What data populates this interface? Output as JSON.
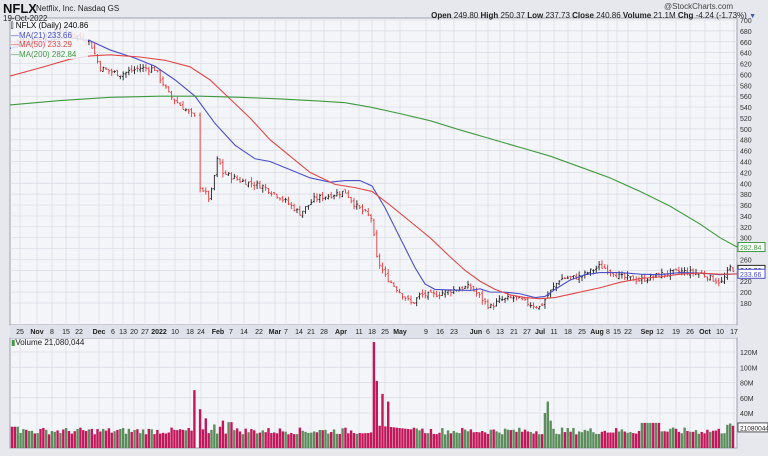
{
  "header": {
    "symbol": "NFLX",
    "company": "Netflix, Inc.",
    "exchange": "Nasdaq GS",
    "date": "19-Oct-2022",
    "brand": "@StockCharts.com",
    "open_label": "Open",
    "open": "249.80",
    "high_label": "High",
    "high": "250.37",
    "low_label": "Low",
    "low": "237.73",
    "close_label": "Close",
    "close": "240.86",
    "volume_label": "Volume",
    "volume": "21.1M",
    "chg_label": "Chg",
    "chg": "-4.24 (-1.73%)",
    "dropdown_icon": "triangle-down"
  },
  "legend": {
    "price": "NFLX (Daily) 240.86",
    "ma21": "MA(21) 233.66",
    "ma50": "MA(50) 233.29",
    "ma200": "MA(200) 282.84"
  },
  "volume_panel": {
    "label": "Volume 21,080,044",
    "last_tag": "21080044"
  },
  "colors": {
    "up_bar": "#222222",
    "down_bar": "#e03c3c",
    "ma21": "#4a4fc8",
    "ma50": "#e04848",
    "ma200": "#3f9a3f",
    "vol_up": "#5b8c5b",
    "vol_down": "#c2185b",
    "grid": "#d8dbe3",
    "plot_bg": "#f4f5f9"
  },
  "chart_data": {
    "type": "ohlc",
    "title": "NFLX Netflix, Inc. Nasdaq GS (Daily) 19-Oct-2022",
    "price_axis": {
      "min": 180,
      "max": 700,
      "ticks": [
        700,
        680,
        660,
        640,
        620,
        600,
        580,
        560,
        540,
        520,
        500,
        480,
        460,
        440,
        420,
        400,
        380,
        360,
        340,
        320,
        300,
        280,
        260,
        240,
        220,
        200,
        180
      ]
    },
    "volume_axis": {
      "ticks": [
        "120M",
        "100M",
        "80M",
        "60M",
        "40M"
      ]
    },
    "x_ticks": [
      "25",
      "Nov",
      "8",
      "15",
      "22",
      "Dec",
      "6",
      "13",
      "20",
      "27",
      "2022",
      "10",
      "18",
      "24",
      "Feb",
      "7",
      "14",
      "22",
      "Mar",
      "7",
      "14",
      "21",
      "28",
      "Apr",
      "11",
      "18",
      "25",
      "May",
      "9",
      "16",
      "23",
      "Jun",
      "6",
      "13",
      "21",
      "27",
      "Jul",
      "11",
      "18",
      "25",
      "Aug",
      "8",
      "15",
      "22",
      "Sep",
      "12",
      "19",
      "26",
      "Oct",
      "10",
      "17"
    ],
    "axis_tags": [
      {
        "label": "282.84",
        "value": 282.84,
        "series": "MA(200)"
      },
      {
        "label": "240.86",
        "value": 240.86,
        "series": "Close"
      },
      {
        "label": "233.66",
        "value": 233.66,
        "series": "MA(21)"
      }
    ],
    "close_series_approx": [
      {
        "period": "Oct-2021 end",
        "close": 665
      },
      {
        "period": "Nov-2021 mid",
        "close": 680
      },
      {
        "period": "Dec-2021 early",
        "close": 610
      },
      {
        "period": "Dec-2021 end",
        "close": 610
      },
      {
        "period": "Jan-2022 mid",
        "close": 525
      },
      {
        "period": "Jan-2022 late",
        "close": 385
      },
      {
        "period": "Feb-2022 early",
        "close": 450
      },
      {
        "period": "Feb-2022 late",
        "close": 390
      },
      {
        "period": "Mar-2022 mid",
        "close": 340
      },
      {
        "period": "Apr-2022 early",
        "close": 380
      },
      {
        "period": "Apr-2022 mid",
        "close": 340
      },
      {
        "period": "Apr-2022 late",
        "close": 220
      },
      {
        "period": "May-2022 mid",
        "close": 175
      },
      {
        "period": "May-2022 end",
        "close": 195
      },
      {
        "period": "Jun-2022 early",
        "close": 200
      },
      {
        "period": "Jun-2022 mid",
        "close": 175
      },
      {
        "period": "Jul-2022 mid",
        "close": 175
      },
      {
        "period": "Jul-2022 end",
        "close": 225
      },
      {
        "period": "Aug-2022 mid",
        "close": 250
      },
      {
        "period": "Aug-2022 end",
        "close": 225
      },
      {
        "period": "Sep-2022 mid",
        "close": 240
      },
      {
        "period": "Oct-2022 mid",
        "close": 215
      },
      {
        "period": "Oct-19-2022",
        "close": 240.86
      }
    ],
    "ma_last": {
      "MA(21)": 233.66,
      "MA(50)": 233.29,
      "MA(200)": 282.84
    },
    "volume_spikes": [
      {
        "period": "Jan-21-2022",
        "volume_m": 70
      },
      {
        "period": "Apr-20-2022",
        "volume_m": 133
      },
      {
        "period": "Jul-20-2022",
        "volume_m": 55
      }
    ],
    "last_volume": 21080044
  }
}
